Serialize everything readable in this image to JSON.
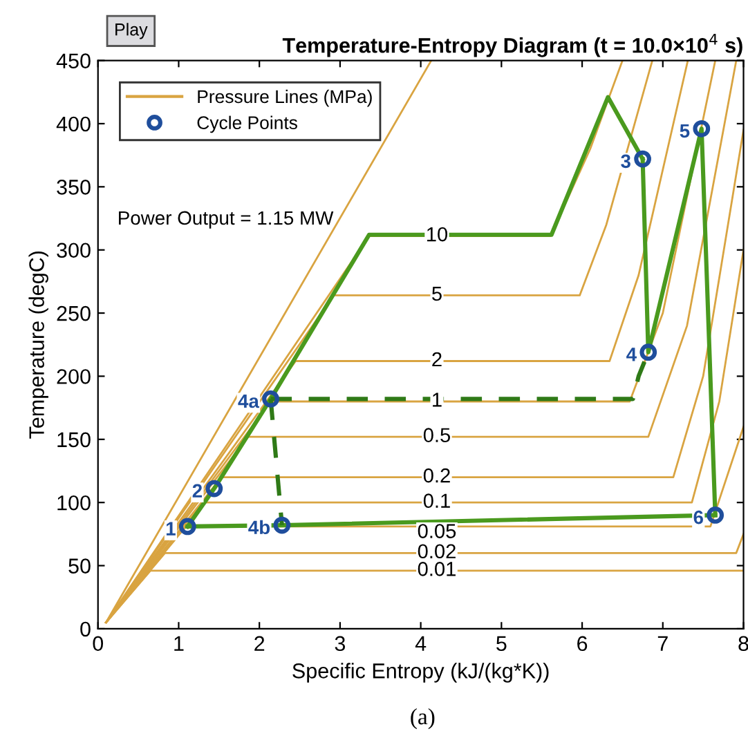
{
  "chart_data": {
    "type": "line",
    "title": "Temperature-Entropy Diagram (t = 10.0×10$^{4}$ s)",
    "xlabel": "Specific Entropy (kJ/(kg*K))",
    "ylabel": "Temperature (degC)",
    "xlim": [
      0,
      8
    ],
    "ylim": [
      0,
      450
    ],
    "xticks": [
      0,
      1,
      2,
      3,
      4,
      5,
      6,
      7,
      8
    ],
    "yticks": [
      0,
      50,
      100,
      150,
      200,
      250,
      300,
      350,
      400,
      450
    ],
    "grid": false,
    "legend": "top left",
    "series": [
      {
        "name": "Pressure Lines (MPa)",
        "type": "line",
        "color": "#d9a441",
        "x": [
          0.1,
          3.36,
          5.61,
          6.1,
          6.5
        ],
        "values": [
          5,
          311,
          311,
          380,
          450
        ]
      },
      {
        "type": "line",
        "color": "#d9a441",
        "x": [
          0.1,
          2.92,
          5.97,
          6.3,
          6.87
        ],
        "values": [
          5,
          264,
          264,
          320,
          450
        ]
      },
      {
        "type": "line",
        "color": "#d9a441",
        "x": [
          0.1,
          2.45,
          6.34,
          6.7,
          7.31
        ],
        "values": [
          5,
          212,
          212,
          280,
          450
        ]
      },
      {
        "type": "line",
        "color": "#d9a441",
        "x": [
          0.1,
          2.14,
          6.59,
          7.0,
          7.65
        ],
        "values": [
          5,
          180,
          180,
          250,
          450
        ]
      },
      {
        "type": "line",
        "color": "#d9a441",
        "x": [
          0.1,
          1.86,
          6.82,
          7.3,
          7.91
        ],
        "values": [
          5,
          152,
          152,
          240,
          450
        ]
      },
      {
        "type": "line",
        "color": "#d9a441",
        "x": [
          0.1,
          1.53,
          7.13,
          7.5,
          8.0
        ],
        "values": [
          5,
          120,
          120,
          200,
          395
        ]
      },
      {
        "type": "line",
        "color": "#d9a441",
        "x": [
          0.1,
          1.3,
          7.36,
          7.7,
          8.0
        ],
        "values": [
          5,
          100,
          100,
          180,
          300
        ]
      },
      {
        "type": "line",
        "color": "#d9a441",
        "x": [
          0.1,
          1.09,
          7.59,
          8.0
        ],
        "values": [
          5,
          81,
          81,
          160
        ]
      },
      {
        "type": "line",
        "color": "#d9a441",
        "x": [
          0.1,
          0.83,
          7.91,
          8.0
        ],
        "values": [
          5,
          60,
          60,
          75
        ]
      },
      {
        "type": "line",
        "color": "#d9a441",
        "x": [
          0.1,
          0.65,
          8.0
        ],
        "values": [
          5,
          46,
          46
        ]
      },
      {
        "type": "line",
        "color": "#d9a441",
        "x": [
          0.1,
          4.13
        ],
        "values": [
          5,
          450
        ]
      },
      {
        "color": "#4a9a1e",
        "line_style": "solid",
        "x": [
          1.11,
          1.44,
          2.14,
          3.36,
          5.62,
          6.32,
          6.75
        ],
        "values": [
          81,
          111,
          182,
          312,
          312,
          421,
          372
        ]
      },
      {
        "color": "#4a9a1e",
        "line_style": "solid",
        "x": [
          6.75,
          6.82,
          7.48,
          7.65
        ],
        "values": [
          372,
          219,
          396,
          90
        ]
      },
      {
        "color": "#4a9a1e",
        "line_style": "solid",
        "x": [
          1.11,
          2.28,
          7.65
        ],
        "values": [
          81,
          82,
          90
        ]
      },
      {
        "color": "#2f7a17",
        "line_style": "dashed",
        "x": [
          2.14,
          6.63,
          6.7,
          6.82
        ],
        "values": [
          182,
          182,
          200,
          219
        ]
      },
      {
        "color": "#2f7a17",
        "line_style": "dashed",
        "x": [
          2.14,
          2.28
        ],
        "values": [
          182,
          82
        ]
      },
      {
        "name": "Cycle Points",
        "type": "scatter",
        "color": "#1f4e9c",
        "marker": "circle",
        "x": [
          1.11,
          1.44,
          6.75,
          6.82,
          2.14,
          2.28,
          7.48,
          7.65
        ],
        "values": [
          81,
          111,
          372,
          219,
          182,
          82,
          396,
          90
        ]
      }
    ],
    "annotations": [
      {
        "text": "1",
        "x": 1.11,
        "y": 81
      },
      {
        "text": "2",
        "x": 1.44,
        "y": 111
      },
      {
        "text": "3",
        "x": 6.75,
        "y": 372
      },
      {
        "text": "4",
        "x": 6.82,
        "y": 219
      },
      {
        "text": "4a",
        "x": 2.14,
        "y": 182
      },
      {
        "text": "4b",
        "x": 2.28,
        "y": 82
      },
      {
        "text": "5",
        "x": 7.48,
        "y": 396
      },
      {
        "text": "6",
        "x": 7.65,
        "y": 90
      },
      {
        "text": "10",
        "x": 4.2,
        "y": 311
      },
      {
        "text": "5",
        "x": 4.2,
        "y": 264
      },
      {
        "text": "2",
        "x": 4.2,
        "y": 212
      },
      {
        "text": "1",
        "x": 4.2,
        "y": 180
      },
      {
        "text": "0.5",
        "x": 4.2,
        "y": 152
      },
      {
        "text": "0.2",
        "x": 4.2,
        "y": 120
      },
      {
        "text": "0.1",
        "x": 4.2,
        "y": 100
      },
      {
        "text": "0.05",
        "x": 4.2,
        "y": 76
      },
      {
        "text": "0.02",
        "x": 4.2,
        "y": 60
      },
      {
        "text": "0.01",
        "x": 4.2,
        "y": 46
      },
      "Play",
      "Power Output = 1.15 MW",
      "(a)"
    ]
  }
}
